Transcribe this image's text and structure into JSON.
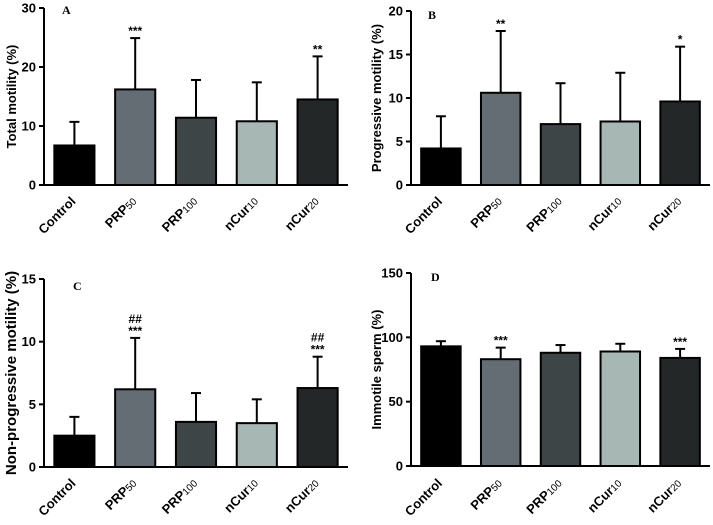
{
  "figure": {
    "categories": [
      {
        "main": "Control",
        "sub": ""
      },
      {
        "main": "PRP",
        "sub": "50"
      },
      {
        "main": "PRP",
        "sub": "100"
      },
      {
        "main": "nCur",
        "sub": "10"
      },
      {
        "main": "nCur",
        "sub": "20"
      }
    ],
    "bar_colors": [
      "#000000",
      "#646d74",
      "#3d4546",
      "#a7b7b3",
      "#232728"
    ]
  },
  "chart_data": [
    {
      "type": "bar",
      "panel": "A",
      "title": "",
      "ylabel": "Total motility (%)",
      "ylim": [
        0,
        30
      ],
      "yticks": [
        0,
        10,
        20,
        30
      ],
      "values": [
        6.7,
        16.2,
        11.4,
        10.8,
        14.5
      ],
      "errors": [
        4.0,
        8.7,
        6.4,
        6.6,
        7.3
      ],
      "significance": [
        "",
        "***",
        "",
        "",
        "**"
      ],
      "significance2": [
        "",
        "",
        "",
        "",
        ""
      ]
    },
    {
      "type": "bar",
      "panel": "B",
      "title": "",
      "ylabel": "Progressive motility (%)",
      "ylim": [
        0,
        20
      ],
      "yticks": [
        0,
        5,
        10,
        15,
        20
      ],
      "values": [
        4.2,
        10.6,
        7.0,
        7.3,
        9.6
      ],
      "errors": [
        3.7,
        7.1,
        4.7,
        5.6,
        6.3
      ],
      "significance": [
        "",
        "**",
        "",
        "",
        "*"
      ],
      "significance2": [
        "",
        "",
        "",
        "",
        ""
      ]
    },
    {
      "type": "bar",
      "panel": "C",
      "title": "",
      "ylabel": "Non-progressive motility (%)",
      "ylim": [
        0,
        15
      ],
      "yticks": [
        0,
        5,
        10,
        15
      ],
      "values": [
        2.5,
        6.2,
        3.6,
        3.5,
        6.3
      ],
      "errors": [
        1.5,
        4.1,
        2.3,
        1.9,
        2.5
      ],
      "significance": [
        "",
        "***",
        "",
        "",
        "***"
      ],
      "significance2": [
        "",
        "##",
        "",
        "",
        "##"
      ]
    },
    {
      "type": "bar",
      "panel": "D",
      "title": "",
      "ylabel": "Immotile sperm (%)",
      "ylim": [
        0,
        150
      ],
      "yticks": [
        0,
        50,
        100,
        150
      ],
      "values": [
        93,
        83,
        88,
        89,
        84
      ],
      "errors": [
        4,
        9,
        6,
        6,
        7
      ],
      "significance": [
        "",
        "***",
        "",
        "",
        "***"
      ],
      "significance2": [
        "",
        "",
        "",
        "",
        ""
      ]
    }
  ]
}
